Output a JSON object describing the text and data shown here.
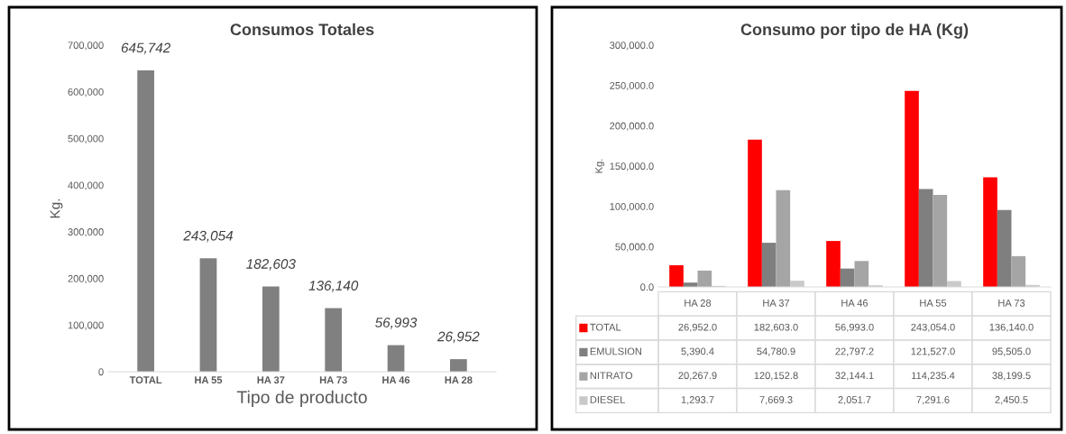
{
  "chart_data": [
    {
      "type": "bar",
      "title": "Consumos Totales",
      "xlabel": "Tipo de producto",
      "ylabel": "Kg.",
      "categories": [
        "TOTAL",
        "HA 55",
        "HA 37",
        "HA 73",
        "HA 46",
        "HA 28"
      ],
      "values": [
        645742,
        243054,
        182603,
        136140,
        56993,
        26952
      ],
      "color": "#808080",
      "value_labels": [
        "645,742",
        "243,054",
        "182,603",
        "136,140",
        "56,993",
        "26,952"
      ],
      "ylim": [
        0,
        700000
      ],
      "yticks": [
        0,
        {
          "value": 100000,
          "label": "100,000"
        },
        {
          "value": 200000,
          "label": "200,000"
        },
        {
          "value": 300000,
          "label": "300,000"
        },
        {
          "value": 400000,
          "label": "400,000"
        },
        {
          "value": 500000,
          "label": "500,000"
        },
        {
          "value": 600000,
          "label": "600,000"
        },
        {
          "value": 700000,
          "label": "700,000"
        }
      ],
      "grid": false
    },
    {
      "type": "bar",
      "title": "Consumo por tipo de HA (Kg)",
      "ylabel": "Kg.",
      "categories": [
        "HA 28",
        "HA 37",
        "HA 46",
        "HA 55",
        "HA 73"
      ],
      "legend": "bottom",
      "grid": false,
      "series": [
        {
          "name": "TOTAL",
          "color": "#ff0000",
          "values": [
            26952.0,
            182603.0,
            56993.0,
            243054.0,
            136140.0
          ],
          "value_labels": [
            "26,952.0",
            "182,603.0",
            "56,993.0",
            "243,054.0",
            "136,140.0"
          ]
        },
        {
          "name": "EMULSION",
          "color": "#7f7f7f",
          "values": [
            5390.4,
            54780.9,
            22797.2,
            121527.0,
            95505.0
          ],
          "value_labels": [
            "5,390.4",
            "54,780.9",
            "22,797.2",
            "121,527.0",
            "95,505.0"
          ]
        },
        {
          "name": "NITRATO",
          "color": "#a5a5a5",
          "values": [
            20267.9,
            120152.8,
            32144.1,
            114235.4,
            38199.5
          ],
          "value_labels": [
            "20,267.9",
            "120,152.8",
            "32,144.1",
            "114,235.4",
            "38,199.5"
          ]
        },
        {
          "name": "DIESEL",
          "color": "#c9c9c9",
          "values": [
            1293.7,
            7669.3,
            2051.7,
            7291.6,
            2450.5
          ],
          "value_labels": [
            "1,293.7",
            "7,669.3",
            "2,051.7",
            "7,291.6",
            "2,450.5"
          ]
        }
      ],
      "ylim": [
        0,
        300000
      ],
      "yticks": [
        {
          "value": 0,
          "label": "0.0"
        },
        {
          "value": 50000,
          "label": "50,000.0"
        },
        {
          "value": 100000,
          "label": "100,000.0"
        },
        {
          "value": 150000,
          "label": "150,000.0"
        },
        {
          "value": 200000,
          "label": "200,000.0"
        },
        {
          "value": 250000,
          "label": "250,000.0"
        },
        {
          "value": 300000,
          "label": "300,000.0"
        }
      ]
    }
  ]
}
